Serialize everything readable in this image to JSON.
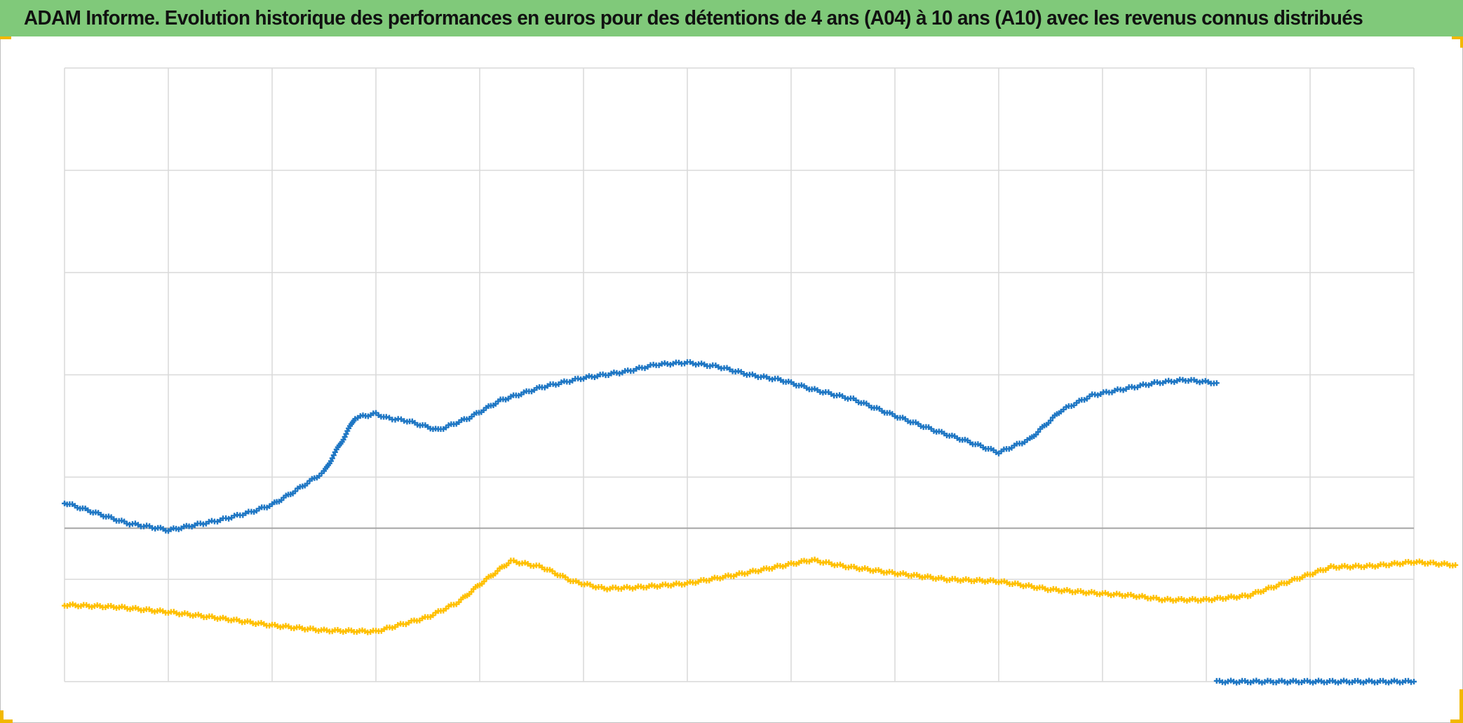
{
  "title": "ADAM Informe. Evolution historique des performances en euros pour des détentions de 4 ans (A04) à 10 ans (A10) avec les revenus connus distribués",
  "colors": {
    "title_bar": "#80c97a",
    "series_blue": "#1f77c4",
    "series_yellow": "#ffc000",
    "grid": "#d9d9d9",
    "accent_corners": "#f2b800"
  },
  "chart_data": {
    "type": "scatter",
    "marker": "plus",
    "title": "ADAM Informe. Evolution historique des performances en euros pour des détentions de 4 ans (A04) à 10 ans (A10) avec les revenus connus distribués",
    "xlabel": "",
    "ylabel": "",
    "x_tick_labels": [],
    "y_tick_labels": [],
    "xlim": [
      0,
      13
    ],
    "ylim": [
      0,
      6
    ],
    "zero_line_y": 1.5,
    "grid": true,
    "legend": "none",
    "series": [
      {
        "color": "#1f77c4",
        "x": [
          0.0,
          0.3,
          0.6,
          0.9,
          1.0,
          1.2,
          1.5,
          1.8,
          2.0,
          2.2,
          2.5,
          2.7,
          2.8,
          3.0,
          3.1,
          3.3,
          3.6,
          3.9,
          4.2,
          4.6,
          5.0,
          5.4,
          5.7,
          6.0,
          6.3,
          6.6,
          6.9,
          7.2,
          7.6,
          8.0,
          8.4,
          8.7,
          9.0,
          9.3,
          9.6,
          9.9,
          10.2,
          10.5,
          10.8,
          11.1
        ],
        "y": [
          1.75,
          1.65,
          1.55,
          1.5,
          1.48,
          1.52,
          1.58,
          1.66,
          1.73,
          1.85,
          2.05,
          2.4,
          2.58,
          2.62,
          2.58,
          2.55,
          2.46,
          2.58,
          2.75,
          2.88,
          2.97,
          3.03,
          3.1,
          3.12,
          3.08,
          3.0,
          2.95,
          2.86,
          2.76,
          2.6,
          2.45,
          2.35,
          2.24,
          2.37,
          2.65,
          2.8,
          2.86,
          2.92,
          2.95,
          2.92
        ]
      },
      {
        "color": "#ffc000",
        "x": [
          0.0,
          0.5,
          1.0,
          1.5,
          2.0,
          2.5,
          3.0,
          3.5,
          3.8,
          4.0,
          4.3,
          4.6,
          4.9,
          5.2,
          5.5,
          6.0,
          6.5,
          7.0,
          7.2,
          7.5,
          8.0,
          8.5,
          9.0,
          9.5,
          10.0,
          10.3,
          10.6,
          11.0,
          11.4,
          11.8,
          12.2,
          12.6,
          13.0,
          13.4
        ],
        "y": [
          0.75,
          0.73,
          0.68,
          0.62,
          0.55,
          0.5,
          0.49,
          0.63,
          0.78,
          0.95,
          1.18,
          1.12,
          0.98,
          0.91,
          0.92,
          0.96,
          1.05,
          1.15,
          1.19,
          1.13,
          1.06,
          1.0,
          0.98,
          0.9,
          0.86,
          0.84,
          0.8,
          0.8,
          0.84,
          0.98,
          1.12,
          1.13,
          1.17,
          1.14
        ]
      },
      {
        "color": "#1f77c4",
        "x": [
          11.1,
          12.0,
          13.0
        ],
        "y": [
          0.0,
          0.0,
          0.0
        ]
      }
    ]
  }
}
